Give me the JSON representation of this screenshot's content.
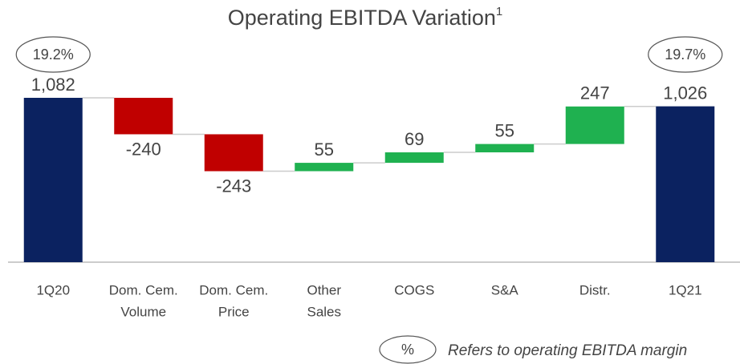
{
  "chart_data": {
    "type": "waterfall",
    "title": "Operating EBITDA Variation",
    "title_superscript": "1",
    "categories": [
      [
        "1Q20"
      ],
      [
        "Dom. Cem.",
        "Volume"
      ],
      [
        "Dom. Cem.",
        "Price"
      ],
      [
        "Other",
        "Sales"
      ],
      [
        "COGS"
      ],
      [
        "S&A"
      ],
      [
        "Distr."
      ],
      [
        "1Q21"
      ]
    ],
    "values": [
      1082,
      -240,
      -243,
      55,
      69,
      55,
      247,
      1026
    ],
    "value_labels": [
      "1,082",
      "-240",
      "-243",
      "55",
      "69",
      "55",
      "247",
      "1,026"
    ],
    "kinds": [
      "absolute",
      "relative",
      "relative",
      "relative",
      "relative",
      "relative",
      "relative",
      "absolute"
    ],
    "colors": {
      "absolute": "#0b2260",
      "increase": "#1fb150",
      "decrease": "#c00000"
    },
    "annotations": [
      {
        "category": 0,
        "text": "19.2%"
      },
      {
        "category": 7,
        "text": "19.7%"
      }
    ],
    "legend": {
      "symbol": "%",
      "text": "Refers to operating EBITDA margin"
    }
  }
}
